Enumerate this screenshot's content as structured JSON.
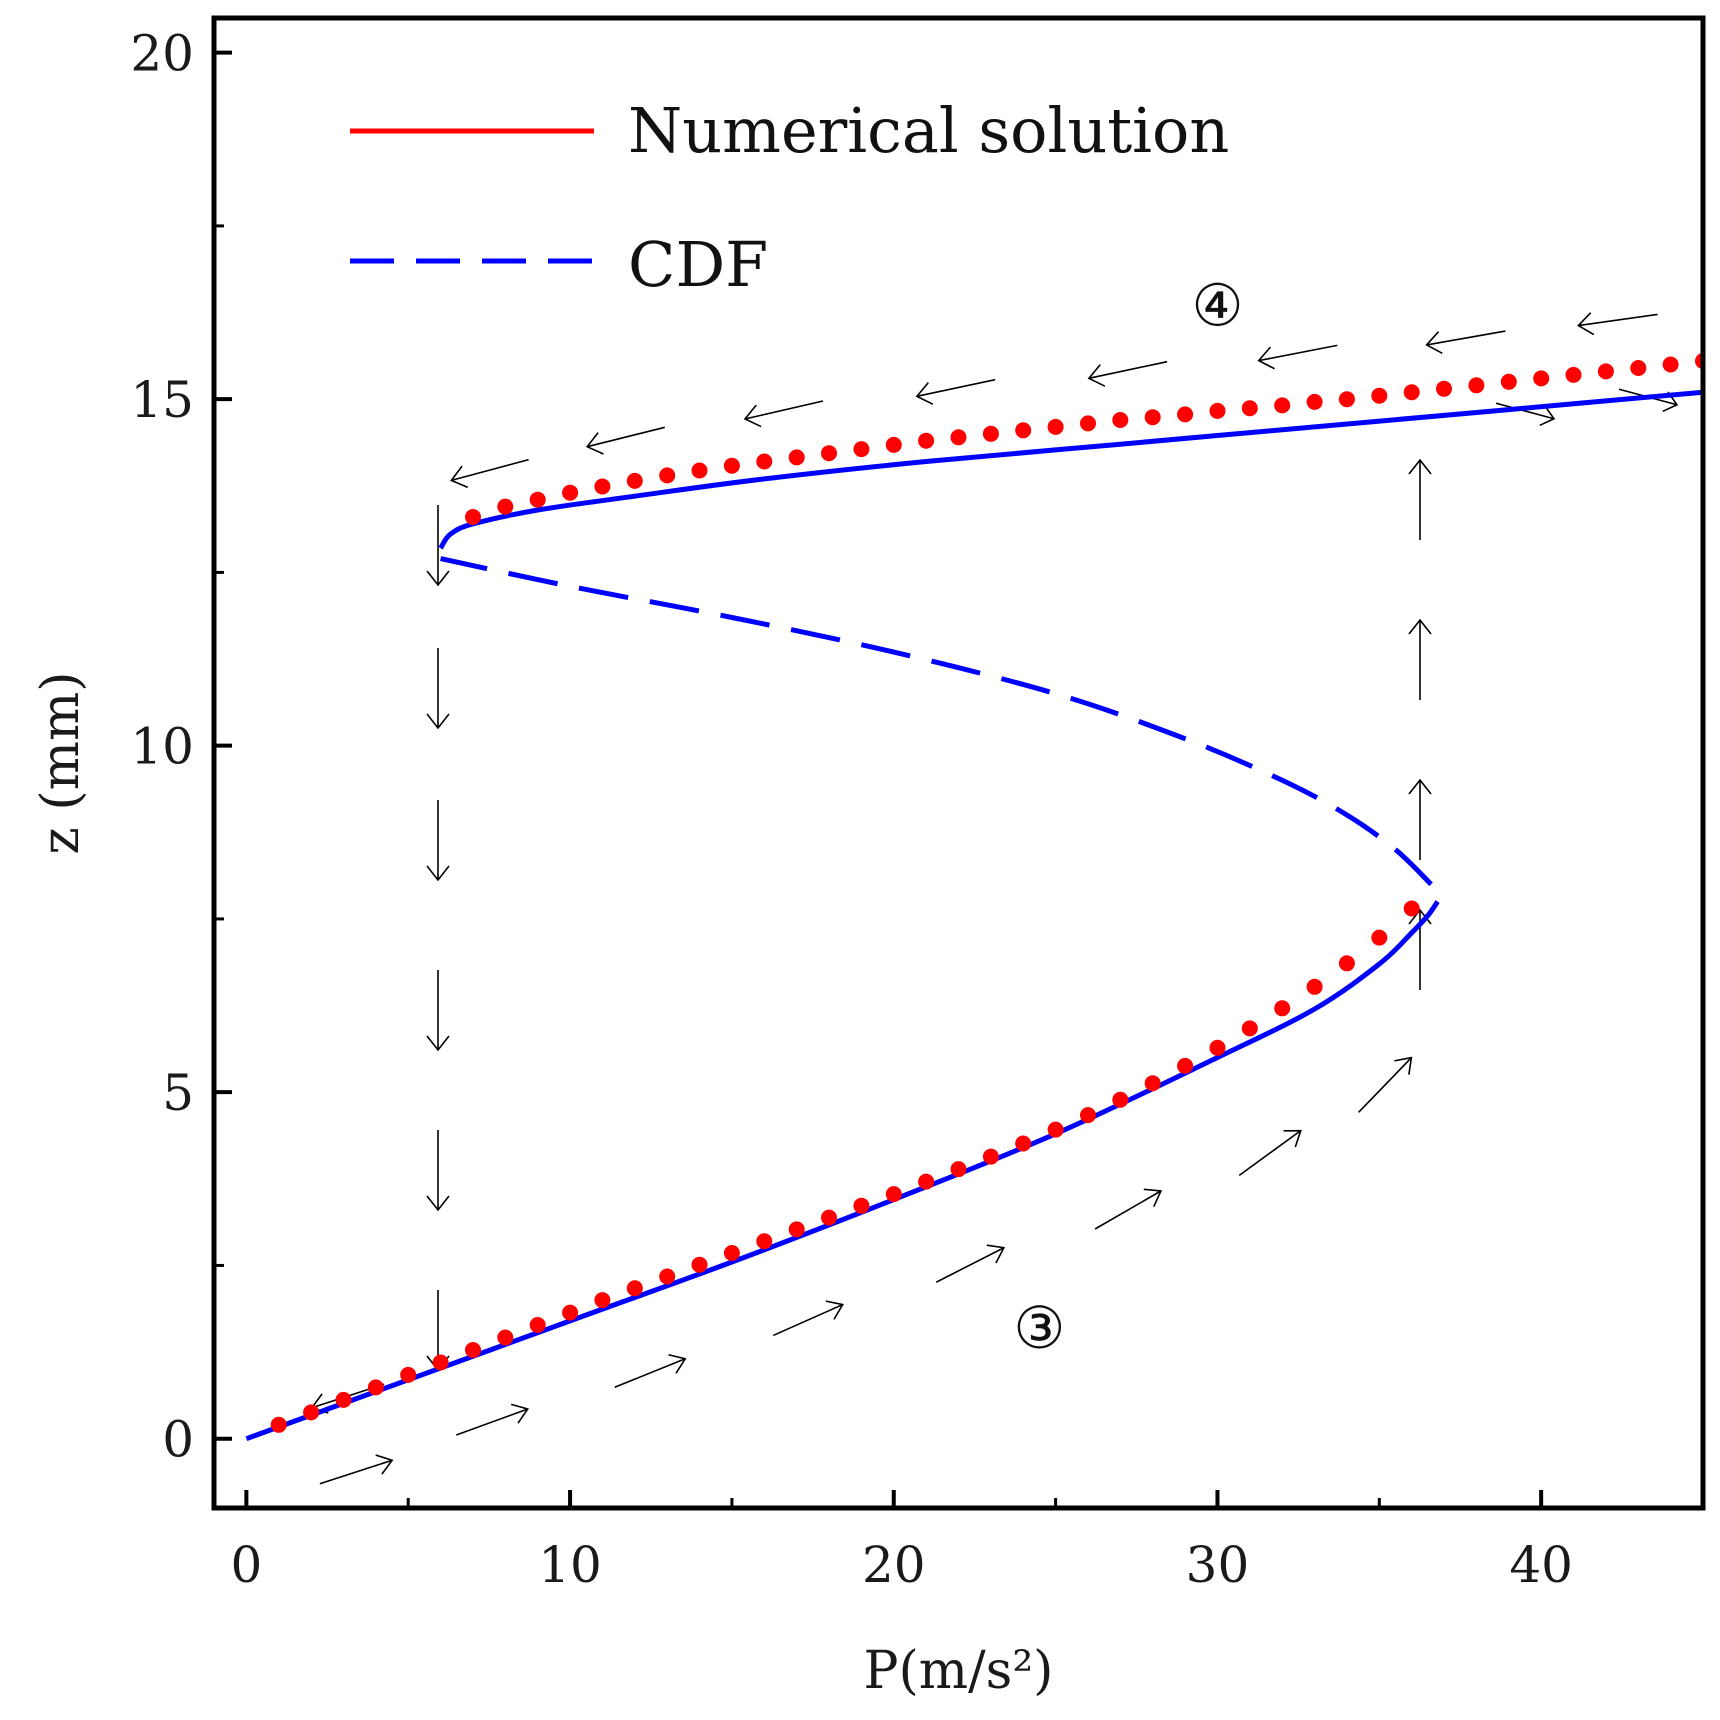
{
  "chart_data": {
    "type": "line",
    "title": "",
    "xlabel": "P(m/s²)",
    "ylabel": "z (mm)",
    "xlim": [
      -1,
      45
    ],
    "ylim": [
      -1,
      20.5
    ],
    "x_ticks": [
      "0",
      "10",
      "20",
      "30",
      "40"
    ],
    "y_ticks": [
      "0",
      "5",
      "10",
      "15",
      "20"
    ],
    "legend": {
      "position": "top-left"
    },
    "series": [
      {
        "name": "Numerical solution",
        "style": "dotted",
        "color": "#ff0000",
        "branches": [
          {
            "x": [
              0,
              1,
              2,
              3,
              4,
              5,
              6,
              7,
              8,
              9,
              10,
              11,
              12,
              13,
              14,
              15,
              16,
              17,
              18,
              19,
              20,
              21,
              22,
              23,
              24,
              25,
              26,
              27,
              28,
              29,
              30,
              31,
              32,
              33,
              34,
              35,
              36
            ],
            "y": [
              0,
              0.2,
              0.38,
              0.56,
              0.74,
              0.92,
              1.1,
              1.28,
              1.46,
              1.64,
              1.82,
              2.0,
              2.17,
              2.34,
              2.51,
              2.68,
              2.85,
              3.02,
              3.19,
              3.36,
              3.53,
              3.71,
              3.89,
              4.07,
              4.26,
              4.46,
              4.67,
              4.89,
              5.13,
              5.38,
              5.64,
              5.92,
              6.21,
              6.52,
              6.86,
              7.23,
              7.65
            ]
          },
          {
            "x": [
              7,
              8,
              9,
              10,
              11,
              12,
              13,
              14,
              15,
              16,
              17,
              18,
              19,
              20,
              21,
              22,
              23,
              24,
              25,
              26,
              27,
              28,
              29,
              30,
              31,
              32,
              33,
              34,
              35,
              36,
              37,
              38,
              39,
              40,
              41,
              42,
              43,
              44,
              45
            ],
            "y": [
              13.3,
              13.45,
              13.55,
              13.65,
              13.74,
              13.82,
              13.9,
              13.97,
              14.04,
              14.1,
              14.16,
              14.22,
              14.28,
              14.34,
              14.4,
              14.45,
              14.5,
              14.55,
              14.6,
              14.65,
              14.7,
              14.74,
              14.78,
              14.83,
              14.87,
              14.91,
              14.96,
              15.0,
              15.05,
              15.1,
              15.15,
              15.2,
              15.25,
              15.3,
              15.35,
              15.4,
              15.45,
              15.5,
              15.55
            ]
          }
        ]
      },
      {
        "name": "CDF",
        "style": "solid-dashed",
        "color": "#0000ff",
        "branches": [
          {
            "segment": "stable-lower",
            "x": [
              0,
              5,
              10,
              15,
              20,
              25,
              30,
              33,
              35,
              36,
              36.5,
              36.8
            ],
            "y": [
              0,
              0.85,
              1.7,
              2.55,
              3.45,
              4.4,
              5.5,
              6.2,
              6.85,
              7.3,
              7.55,
              7.75
            ]
          },
          {
            "segment": "unstable",
            "x": [
              36.6,
              35.5,
              34,
              32,
              29,
              25,
              20,
              15,
              10,
              6
            ],
            "y": [
              8.0,
              8.5,
              9.0,
              9.5,
              10.1,
              10.75,
              11.35,
              11.85,
              12.3,
              12.7
            ]
          },
          {
            "segment": "stable-upper",
            "x": [
              6,
              6.3,
              7,
              9,
              12,
              16,
              21,
              27,
              33,
              39,
              45
            ],
            "y": [
              12.85,
              13.05,
              13.2,
              13.4,
              13.6,
              13.85,
              14.1,
              14.35,
              14.6,
              14.85,
              15.1
            ]
          }
        ]
      }
    ],
    "annotations": [
      {
        "text": "③",
        "x": 24.5,
        "y": 1.6
      },
      {
        "text": "④",
        "x": 30,
        "y": 16.35
      }
    ]
  }
}
